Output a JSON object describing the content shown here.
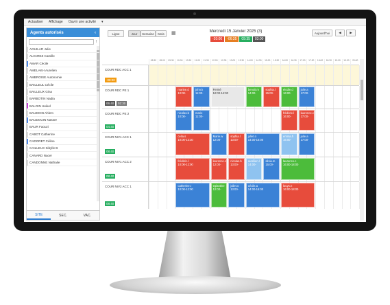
{
  "menu": [
    "Actualiser",
    "Affichage",
    "Ouvrir une activité",
    "▾"
  ],
  "sidebar": {
    "title": "Agents autorisés",
    "collapse_icon": "chevron-left-icon",
    "sort_icon": "arrow-up-icon",
    "agents": [
      {
        "name": "AGUILAR Julie",
        "color": "#d9d9d9"
      },
      {
        "name": "ALVAREZ Camille",
        "color": "#d9d9d9"
      },
      {
        "name": "AMAR Cécile",
        "color": "#4a86e8"
      },
      {
        "name": "AMELAKH Aurelien",
        "color": "#d9d9d9"
      },
      {
        "name": "AMBROISE Autonomie",
        "color": "#d9d9d9"
      },
      {
        "name": "BAILLEUL Cécile",
        "color": "#d9d9d9"
      },
      {
        "name": "BAILLEUX Gina",
        "color": "#d9d9d9"
      },
      {
        "name": "BARBOTIN Nadia",
        "color": "#d9d9d9"
      },
      {
        "name": "BALOIN Heikel",
        "color": "#c23bd4"
      },
      {
        "name": "BAUDOIN Ahlem",
        "color": "#d9d9d9"
      },
      {
        "name": "BAUDOUIN Nasser",
        "color": "#4a86e8"
      },
      {
        "name": "BAUR Faouzi",
        "color": "#d9d9d9"
      },
      {
        "name": "CABOT Catherine",
        "color": "#d9d9d9"
      },
      {
        "name": "CADORET Céline",
        "color": "#4a86e8"
      },
      {
        "name": "CAILLEUX Sibylle B",
        "color": "#d9d9d9"
      },
      {
        "name": "CANARD Nacer",
        "color": "#d9d9d9"
      },
      {
        "name": "CANDONNE Nathalie",
        "color": "#d9d9d9"
      }
    ],
    "tabs": [
      "SITE",
      "SEC.",
      "VAC."
    ]
  },
  "toolbar": {
    "btn_ligne": "Ligne",
    "btn_jour": "Jour",
    "btn_semaine": "Semaine",
    "btn_mois": "Mois",
    "calendar_icon": "calendar-icon",
    "date_title": "Mercredi 15 Janvier 2025 (3)",
    "btn_today": "Aujourd'hui",
    "prev_icon": "chevron-left-icon",
    "next_icon": "chevron-right-icon",
    "chips": [
      {
        "text": "-20:00",
        "color": "#e74c3c"
      },
      {
        "text": "-06:35",
        "color": "#e67e22"
      },
      {
        "text": "09:35",
        "color": "#27ae60"
      },
      {
        "text": "03:00",
        "color": "#555555"
      }
    ]
  },
  "hours": [
    "08:30",
    "09:00",
    "09:30",
    "10:00",
    "10:30",
    "11:00",
    "11:30",
    "12:00",
    "12:30",
    "13:00",
    "13:30",
    "14:00",
    "14:30",
    "15:00",
    "15:30",
    "16:00",
    "16:30",
    "17:00",
    "17:30",
    "18:00",
    "18:30",
    "19:00",
    "19:30",
    "20:00"
  ],
  "rows": [
    {
      "name": "COUR RDC ACC 1",
      "time": "-08:00",
      "time_color": "#f39c12",
      "time2": ""
    },
    {
      "name": "COUR RDC PE 1",
      "time": "06:40",
      "time_color": "#555555",
      "time2": "02:30"
    },
    {
      "name": "COUR RDC PE 2",
      "time": "04:40",
      "time_color": "#27ae60",
      "time2": ""
    },
    {
      "name": "COUR NIV1 ACC 1",
      "time": "08:40",
      "time_color": "#27ae60",
      "time2": ""
    },
    {
      "name": "COUR NIV1 ACC 2",
      "time": "08:40",
      "time_color": "#27ae60",
      "time2": ""
    },
    {
      "name": "COUR NIV2 ACC 1",
      "time": "08:40",
      "time_color": "#27ae60",
      "time2": ""
    }
  ],
  "blocks": [
    {
      "row": 1,
      "a": "marine.d",
      "b": "10:00-",
      "color": "#e74c3c"
    },
    {
      "row": 1,
      "a": "john.k",
      "b": "11:00-",
      "color": "#3b82d6"
    },
    {
      "row": 1,
      "a": "Fermé",
      "b": "12:00-14:00",
      "color": "#e8e8e8"
    },
    {
      "row": 1,
      "a": "benoit.m",
      "b": "14:00-",
      "color": "#4cbc3b"
    },
    {
      "row": 1,
      "a": "sophia.l",
      "b": "15:00-",
      "color": "#e74c3c"
    },
    {
      "row": 1,
      "a": "elodie.d",
      "b": "16:00-",
      "color": "#4cbc3b"
    },
    {
      "row": 1,
      "a": "julie.a",
      "b": "17:00-",
      "color": "#3b82d6"
    },
    {
      "row": 2,
      "a": "nicolas.b",
      "b": "10:00-",
      "color": "#3b82d6"
    },
    {
      "row": 2,
      "a": "marie",
      "b": "11:00-",
      "color": "#3b82d6"
    },
    {
      "row": 2,
      "a": "frédéric.l",
      "b": "16:00-",
      "color": "#e74c3c"
    },
    {
      "row": 2,
      "a": "laurence.c",
      "b": "17:00-",
      "color": "#e74c3c"
    },
    {
      "row": 3,
      "a": "celia.s",
      "b": "10:00-12:30",
      "color": "#e74c3c"
    },
    {
      "row": 3,
      "a": "Marie.w",
      "b": "12:00-",
      "color": "#3b82d6"
    },
    {
      "row": 3,
      "a": "sophia.l",
      "b": "13:00-",
      "color": "#e74c3c"
    },
    {
      "row": 3,
      "a": "juliet.o",
      "b": "14:00-16:00",
      "color": "#3b82d6"
    },
    {
      "row": 3,
      "a": "emma.h",
      "b": "16:00-",
      "color": "#8fc3f0"
    },
    {
      "row": 3,
      "a": "julie.a",
      "b": "17:00-",
      "color": "#3b82d6"
    },
    {
      "row": 4,
      "a": "frédéric.l",
      "b": "10:00-12:00",
      "color": "#e74c3c"
    },
    {
      "row": 4,
      "a": "laurence.c",
      "b": "12:00-",
      "color": "#e74c3c"
    },
    {
      "row": 4,
      "a": "nicolas.b",
      "b": "13:00-",
      "color": "#e74c3c"
    },
    {
      "row": 4,
      "a": "aurélien.l",
      "b": "14:00-",
      "color": "#8fc3f0"
    },
    {
      "row": 4,
      "a": "silvia.m",
      "b": "15:00-",
      "color": "#3b82d6"
    },
    {
      "row": 4,
      "a": "laurence.c",
      "b": "16:00-18:00",
      "color": "#4cbc3b"
    },
    {
      "row": 5,
      "a": "catherine.t",
      "b": "10:00-12:00",
      "color": "#3b82d6"
    },
    {
      "row": 5,
      "a": "eglantine",
      "b": "12:00-",
      "color": "#4cbc3b"
    },
    {
      "row": 5,
      "a": "juliet.o",
      "b": "13:00-",
      "color": "#3b82d6"
    },
    {
      "row": 5,
      "a": "cécile.a",
      "b": "14:00-16:00",
      "color": "#3b82d6"
    },
    {
      "row": 5,
      "a": "louys.n",
      "b": "16:00-18:00",
      "color": "#e74c3c"
    }
  ]
}
